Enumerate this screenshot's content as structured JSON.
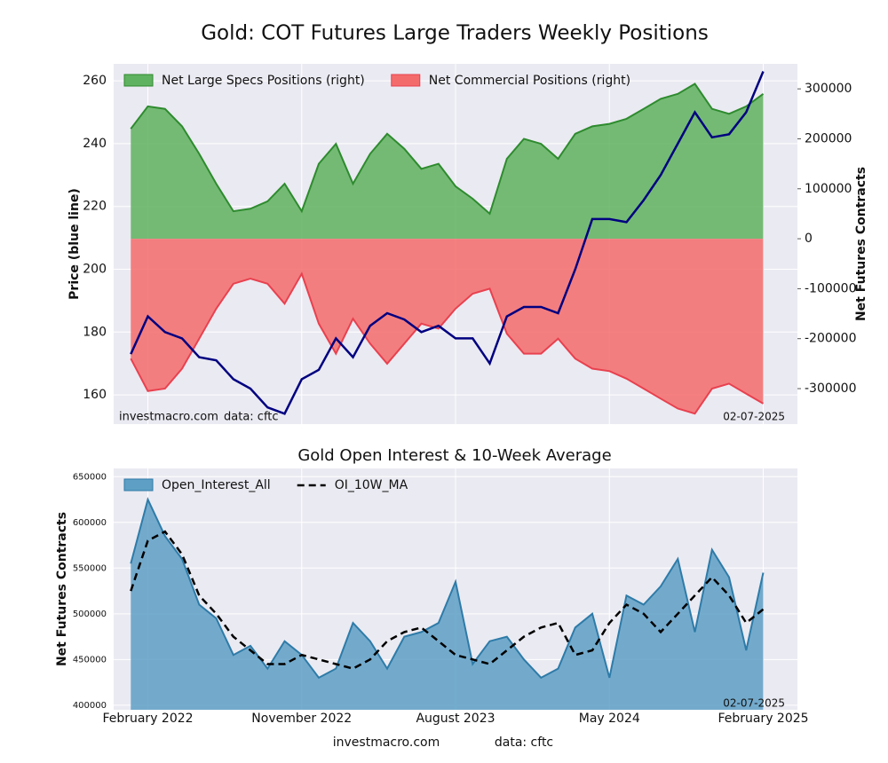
{
  "chart_data": [
    {
      "type": "area_line",
      "title": "Gold: COT Futures Large Traders Weekly Positions",
      "ylabel": "Price (blue line)",
      "y2label": "Net Futures Contracts",
      "source": "investmacro.com",
      "data_note": "data: cftc",
      "date_note": "02-07-2025",
      "x": [
        "2022-01",
        "2022-02",
        "2022-03",
        "2022-04",
        "2022-05",
        "2022-06",
        "2022-07",
        "2022-08",
        "2022-09",
        "2022-10",
        "2022-11",
        "2022-12",
        "2023-01",
        "2023-02",
        "2023-03",
        "2023-04",
        "2023-05",
        "2023-06",
        "2023-07",
        "2023-08",
        "2023-09",
        "2023-10",
        "2023-11",
        "2023-12",
        "2024-01",
        "2024-02",
        "2024-03",
        "2024-04",
        "2024-05",
        "2024-06",
        "2024-07",
        "2024-08",
        "2024-09",
        "2024-10",
        "2024-11",
        "2024-12",
        "2025-01",
        "2025-02"
      ],
      "xlim": [
        "2021-12",
        "2025-04"
      ],
      "ylim": [
        150.7,
        265.4
      ],
      "yticks": [
        160,
        180,
        200,
        220,
        240,
        260
      ],
      "y2lim": [
        -371000,
        350000
      ],
      "y2ticks": [
        -300000,
        -200000,
        -100000,
        0,
        100000,
        200000,
        300000
      ],
      "grid": true,
      "legend": "upper left",
      "series": [
        {
          "name": "Net Large Specs Positions (right)",
          "style": "area",
          "axis": "y2",
          "color": "#2e8b2e",
          "fill": "#5fb25f",
          "values": [
            220000,
            265000,
            260000,
            225000,
            170000,
            110000,
            55000,
            60000,
            75000,
            110000,
            55000,
            150000,
            190000,
            110000,
            170000,
            210000,
            180000,
            140000,
            150000,
            105000,
            80000,
            50000,
            160000,
            200000,
            190000,
            160000,
            210000,
            225000,
            230000,
            240000,
            260000,
            280000,
            290000,
            310000,
            260000,
            250000,
            265000,
            290000
          ]
        },
        {
          "name": "Net Commercial Positions (right)",
          "style": "area",
          "axis": "y2",
          "color": "#e8414f",
          "fill": "#f46b6b",
          "values": [
            -240000,
            -305000,
            -300000,
            -260000,
            -200000,
            -140000,
            -90000,
            -80000,
            -90000,
            -130000,
            -70000,
            -170000,
            -230000,
            -160000,
            -210000,
            -250000,
            -210000,
            -170000,
            -180000,
            -140000,
            -110000,
            -100000,
            -190000,
            -230000,
            -230000,
            -200000,
            -240000,
            -260000,
            -265000,
            -280000,
            -300000,
            -320000,
            -340000,
            -350000,
            -300000,
            -290000,
            -310000,
            -330000
          ]
        },
        {
          "style": "line",
          "axis": "y",
          "color": "#000080",
          "values": [
            173,
            185,
            180,
            178,
            172,
            171,
            165,
            162,
            156,
            154,
            165,
            168,
            178,
            172,
            182,
            186,
            184,
            180,
            182,
            178,
            178,
            170,
            185,
            188,
            188,
            186,
            200,
            216,
            216,
            215,
            222,
            230,
            240,
            250,
            242,
            243,
            250,
            263
          ]
        }
      ]
    },
    {
      "type": "area_line",
      "title": "Gold Open Interest & 10-Week Average",
      "ylabel": "Net Futures Contracts",
      "date_note": "02-07-2025",
      "source": "investmacro.com",
      "data_note": "data: cftc",
      "x": [
        "2022-01",
        "2022-02",
        "2022-03",
        "2022-04",
        "2022-05",
        "2022-06",
        "2022-07",
        "2022-08",
        "2022-09",
        "2022-10",
        "2022-11",
        "2022-12",
        "2023-01",
        "2023-02",
        "2023-03",
        "2023-04",
        "2023-05",
        "2023-06",
        "2023-07",
        "2023-08",
        "2023-09",
        "2023-10",
        "2023-11",
        "2023-12",
        "2024-01",
        "2024-02",
        "2024-03",
        "2024-04",
        "2024-05",
        "2024-06",
        "2024-07",
        "2024-08",
        "2024-09",
        "2024-10",
        "2024-11",
        "2024-12",
        "2025-01",
        "2025-02"
      ],
      "xlim": [
        "2021-12",
        "2025-04"
      ],
      "xticks": [
        {
          "value": "2022-02",
          "label": "February 2022"
        },
        {
          "value": "2022-11",
          "label": "November 2022"
        },
        {
          "value": "2023-08",
          "label": "August 2023"
        },
        {
          "value": "2024-05",
          "label": "May 2024"
        },
        {
          "value": "2025-02",
          "label": "February 2025"
        }
      ],
      "ylim": [
        395000,
        659000
      ],
      "yticks": [
        400000,
        450000,
        500000,
        550000,
        600000,
        650000
      ],
      "grid": true,
      "legend": "upper left",
      "series": [
        {
          "name": "Open_Interest_All",
          "style": "area",
          "axis": "y",
          "color": "#2e7ba8",
          "fill": "#5e9fc5",
          "values": [
            555000,
            625000,
            585000,
            560000,
            510000,
            495000,
            455000,
            465000,
            440000,
            470000,
            455000,
            430000,
            440000,
            490000,
            470000,
            440000,
            475000,
            480000,
            490000,
            535000,
            445000,
            470000,
            475000,
            450000,
            430000,
            440000,
            485000,
            500000,
            430000,
            520000,
            510000,
            530000,
            560000,
            480000,
            570000,
            540000,
            460000,
            545000
          ]
        },
        {
          "name": "OI_10W_MA",
          "style": "dashed",
          "axis": "y",
          "color": "#000000",
          "values": [
            525000,
            580000,
            590000,
            565000,
            520000,
            500000,
            475000,
            460000,
            445000,
            445000,
            455000,
            450000,
            445000,
            440000,
            450000,
            470000,
            480000,
            485000,
            470000,
            455000,
            450000,
            445000,
            460000,
            475000,
            485000,
            490000,
            455000,
            460000,
            490000,
            510000,
            500000,
            480000,
            500000,
            520000,
            540000,
            520000,
            490000,
            505000
          ]
        }
      ]
    }
  ]
}
